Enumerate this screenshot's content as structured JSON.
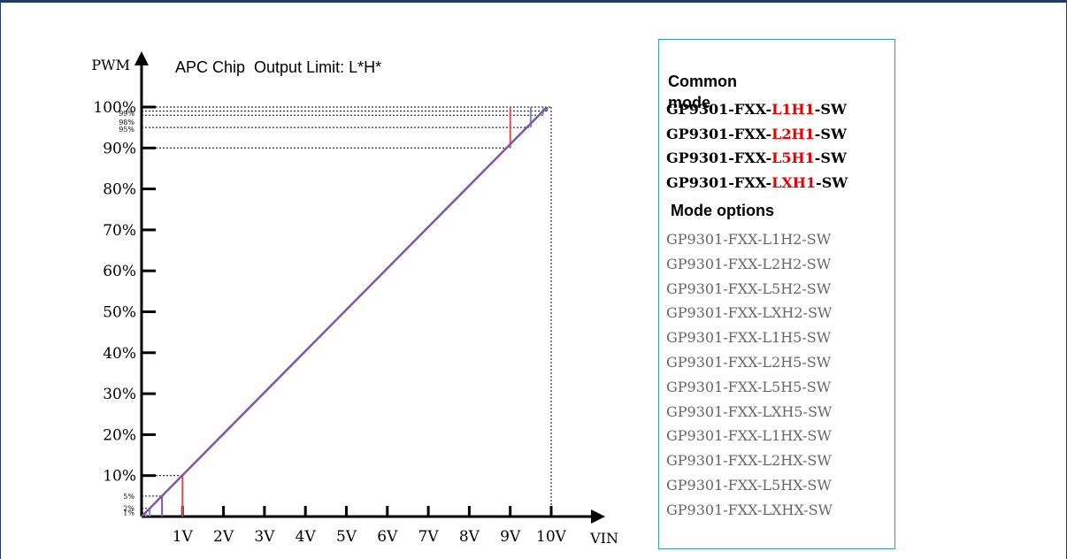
{
  "chart_data": {
    "type": "line",
    "title": "APC Chip  Output Limit: L*H*",
    "xlabel": "VIN",
    "ylabel": "PWM",
    "x_range": [
      0,
      10
    ],
    "y_range": [
      0,
      100
    ],
    "x_ticks": [
      "1V",
      "2V",
      "3V",
      "4V",
      "5V",
      "6V",
      "7V",
      "8V",
      "9V",
      "10V"
    ],
    "y_ticks": [
      "10%",
      "20%",
      "30%",
      "40%",
      "50%",
      "60%",
      "70%",
      "80%",
      "90%",
      "100%"
    ],
    "y_small_ticks_low": [
      "1%",
      "2%",
      "5%"
    ],
    "y_small_ticks_high": [
      "95%",
      "98%",
      "99%"
    ],
    "series": [
      {
        "color": "#7e57a8",
        "x": [
          0,
          0.1,
          9.8
        ],
        "y": [
          0,
          1,
          99
        ]
      }
    ],
    "lower_limits": [
      {
        "x": 0.1,
        "y": 1,
        "color": "#e6a23c"
      },
      {
        "x": 0.2,
        "y": 2,
        "color": "#6b8fc7"
      },
      {
        "x": 0.5,
        "y": 5,
        "color": "#7e57a8"
      },
      {
        "x": 1.0,
        "y": 10,
        "color": "#e05050"
      }
    ],
    "upper_limits": [
      {
        "x": 9.0,
        "y": 90,
        "color": "#e05050"
      },
      {
        "x": 9.5,
        "y": 95,
        "color": "#6b8fc7"
      },
      {
        "x": 9.8,
        "y": 98,
        "color": "#6fb3c7"
      },
      {
        "x": 9.9,
        "y": 99,
        "color": "#7e57a8"
      }
    ],
    "reference_lines": {
      "style": "dotted",
      "x_at_100": 10,
      "y_at_100": 100
    }
  },
  "legend": {
    "common_heading": "Common mode",
    "common_items": [
      {
        "prefix": "GP9301-FXX-",
        "code": "L1H1",
        "suffix": "-SW"
      },
      {
        "prefix": "GP9301-FXX-",
        "code": "L2H1",
        "suffix": "-SW"
      },
      {
        "prefix": "GP9301-FXX-",
        "code": "L5H1",
        "suffix": "-SW"
      },
      {
        "prefix": "GP9301-FXX-",
        "code": "LXH1",
        "suffix": "-SW"
      }
    ],
    "options_heading": "Mode options",
    "option_items": [
      "GP9301-FXX-L1H2-SW",
      "GP9301-FXX-L2H2-SW",
      "GP9301-FXX-L5H2-SW",
      "GP9301-FXX-LXH2-SW",
      "GP9301-FXX-L1H5-SW",
      "GP9301-FXX-L2H5-SW",
      "GP9301-FXX-L5H5-SW",
      "GP9301-FXX-LXH5-SW",
      "GP9301-FXX-L1HX-SW",
      "GP9301-FXX-L2HX-SW",
      "GP9301-FXX-L5HX-SW",
      "GP9301-FXX-LXHX-SW"
    ],
    "code_color": "#e60000"
  }
}
